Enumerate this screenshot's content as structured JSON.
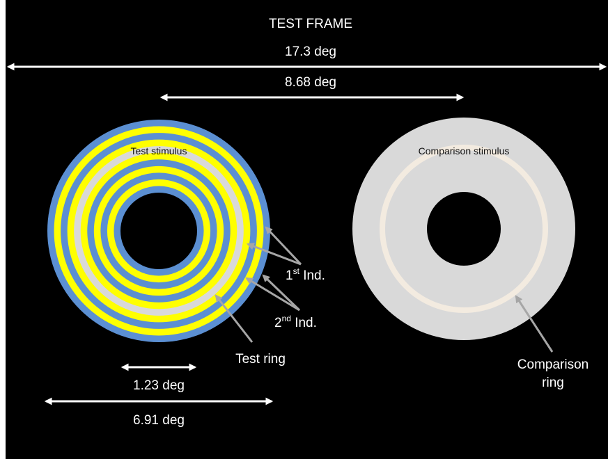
{
  "frame_title": "TEST FRAME",
  "dimensions": {
    "frame_width": "17.3 deg",
    "stimulus_separation": "8.68 deg",
    "inner_hole": "1.23 deg",
    "stimulus_diameter": "6.91 deg"
  },
  "test_stimulus": {
    "label": "Test stimulus",
    "ring_sequence": [
      "blue",
      "yellow",
      "blue",
      "yellow",
      "gray",
      "yellow",
      "blue",
      "yellow",
      "blue",
      "yellow",
      "blue"
    ]
  },
  "comparison_stimulus": {
    "label": "Comparison stimulus"
  },
  "annotations": {
    "first_inducer": {
      "prefix": "1",
      "superscript": "st",
      "suffix": " Ind."
    },
    "second_inducer": {
      "prefix": "2",
      "superscript": "nd",
      "suffix": " Ind."
    },
    "test_ring": "Test ring",
    "comparison_ring_line1": "Comparison",
    "comparison_ring_line2": "ring"
  },
  "colors": {
    "background": "#000000",
    "blue": "#5b8fd2",
    "yellow": "#ffff00",
    "gray": "#d9d9d9",
    "comparison_disk": "#d9d9d9",
    "comparison_ring": "#f3ebe0",
    "arrow_gray": "#a6a6a6",
    "dimension_arrow": "#ffffff"
  }
}
